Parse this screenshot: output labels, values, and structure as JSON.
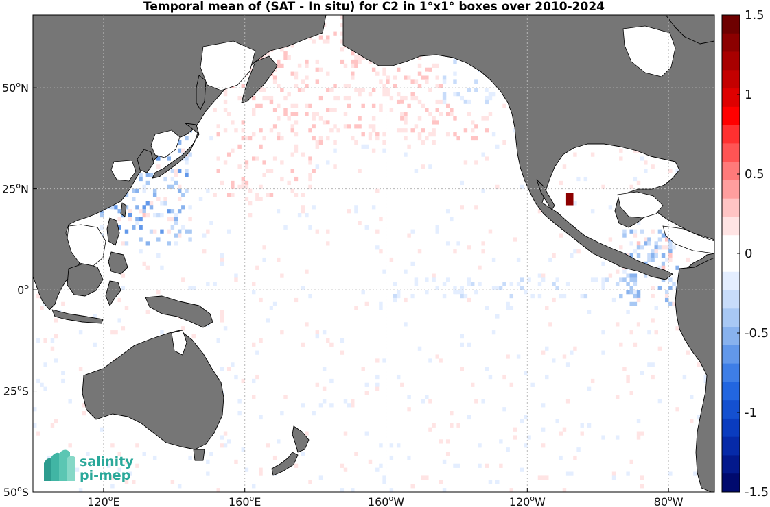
{
  "title": "Temporal mean of (SAT - In situ) for C2 in 1°x1° boxes over 2010-2024",
  "x_ticks": [
    {
      "lon": 120,
      "deg": "120",
      "hemi": "E"
    },
    {
      "lon": 160,
      "deg": "160",
      "hemi": "E"
    },
    {
      "lon": 200,
      "deg": "160",
      "hemi": "W"
    },
    {
      "lon": 240,
      "deg": "120",
      "hemi": "W"
    },
    {
      "lon": 280,
      "deg": "80",
      "hemi": "W"
    }
  ],
  "y_ticks": [
    {
      "lat": 50,
      "deg": "50",
      "hemi": "N"
    },
    {
      "lat": 25,
      "deg": "25",
      "hemi": "N"
    },
    {
      "lat": 0,
      "deg": "0",
      "hemi": ""
    },
    {
      "lat": -25,
      "deg": "25",
      "hemi": "S"
    },
    {
      "lat": -50,
      "deg": "50",
      "hemi": "S"
    }
  ],
  "colorbar": {
    "min": -1.5,
    "max": 1.5,
    "tick_values": [
      1.5,
      1,
      0.5,
      0,
      -0.5,
      -1,
      -1.5
    ],
    "tick_labels": [
      "1.5",
      "1",
      "0.5",
      "0",
      "-0.5",
      "-1",
      "-1.5"
    ],
    "colors_top_to_bottom": [
      "#6e0000",
      "#8c0000",
      "#a80000",
      "#c40000",
      "#de0000",
      "#ff0000",
      "#ff3030",
      "#ff5454",
      "#ff7a7a",
      "#ff9e9e",
      "#ffc4c4",
      "#ffe4e4",
      "#ffffff",
      "#ffffff",
      "#e4eeff",
      "#c8dcfa",
      "#a8c8f4",
      "#88b2ee",
      "#6298ea",
      "#3e7ee6",
      "#2266e0",
      "#1450d0",
      "#0a3cbf",
      "#062aa8",
      "#03198c",
      "#000a6e"
    ]
  },
  "map": {
    "lon_range": [
      100,
      293
    ],
    "lat_range": [
      -50,
      68
    ],
    "ocean_color": "#ffffff",
    "land_color": "#767676",
    "grid": true
  },
  "logo": {
    "line1": "salinity",
    "line2": "pi-mep"
  }
}
